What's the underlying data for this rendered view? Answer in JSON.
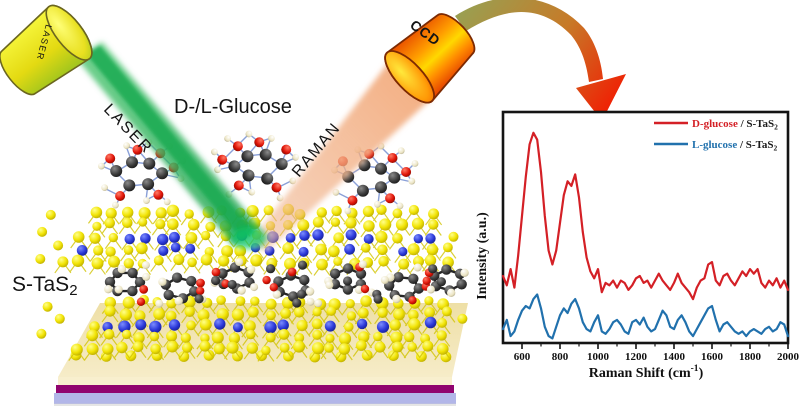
{
  "scene": {
    "labels": {
      "laser_device": "LASER",
      "laser_beam": "LASER",
      "raman_beam": "RAMAN",
      "ccd_device": "CCD",
      "analyte": "D-/L-Glucose",
      "substrate_main": "S-TaS",
      "substrate_sub": "2"
    },
    "colors": {
      "laser_body": "#f0e818",
      "laser_beam_green": "#18a34c",
      "raman_beam_salmon": "#f2a878",
      "ccd_body_orange": "#ff7a00",
      "arrow_start_olive": "#96a254",
      "arrow_end_red": "#ee2405",
      "sulfur_atom_yellow": "#ecd90a",
      "tantalum_atom_blue": "#2531cf",
      "carbon_atom_dark": "#3c3c3c",
      "oxygen_atom_red": "#e01408",
      "hydrogen_atom_cream": "#ece5c4",
      "substrate_top_cream": "#f1e2b2",
      "substrate_stripe_magenta": "#90046f",
      "substrate_base_lavender": "#b2b6e8"
    }
  },
  "chart_data": {
    "type": "line",
    "title": "",
    "xlabel_main": "Raman Shift (cm",
    "xlabel_sup": "-1",
    "xlabel_close": ")",
    "ylabel": "Intensity (a.u.)",
    "x_range": [
      500,
      2000
    ],
    "x_major_ticks": [
      600,
      800,
      1000,
      1200,
      1400,
      1600,
      1800,
      2000
    ],
    "x_minor_ticks": [
      700,
      900,
      1100,
      1300,
      1500,
      1700,
      1900
    ],
    "y_axis": "unlabeled arbitrary units, no tick labels",
    "grid": false,
    "legend_position": "top-right inside frame",
    "legend": [
      {
        "label_main": "D-glucose",
        "label_suffix": " / S-TaS",
        "label_sub": "2",
        "color": "#d42026"
      },
      {
        "label_main": "L-glucose",
        "label_suffix": " / S-TaS",
        "label_sub": "2",
        "color": "#2171ad"
      }
    ],
    "series": [
      {
        "name": "D-glucose / S-TaS2",
        "color": "#d42026",
        "x_start": 500,
        "x_step": 20,
        "y_relative": [
          0.29,
          0.25,
          0.32,
          0.24,
          0.38,
          0.55,
          0.72,
          0.86,
          0.91,
          0.88,
          0.74,
          0.55,
          0.4,
          0.34,
          0.4,
          0.52,
          0.64,
          0.7,
          0.68,
          0.73,
          0.63,
          0.48,
          0.37,
          0.31,
          0.28,
          0.32,
          0.22,
          0.26,
          0.25,
          0.27,
          0.24,
          0.27,
          0.26,
          0.23,
          0.25,
          0.28,
          0.29,
          0.26,
          0.27,
          0.24,
          0.27,
          0.3,
          0.27,
          0.25,
          0.23,
          0.26,
          0.3,
          0.26,
          0.24,
          0.22,
          0.19,
          0.24,
          0.27,
          0.28,
          0.34,
          0.35,
          0.27,
          0.25,
          0.29,
          0.3,
          0.27,
          0.25,
          0.28,
          0.31,
          0.29,
          0.32,
          0.3,
          0.32,
          0.26,
          0.24,
          0.27,
          0.25,
          0.28,
          0.24,
          0.27,
          0.23
        ]
      },
      {
        "name": "L-glucose / S-TaS2",
        "color": "#2171ad",
        "x_start": 500,
        "x_step": 20,
        "y_relative": [
          0.06,
          0.1,
          0.03,
          0.05,
          0.1,
          0.14,
          0.16,
          0.15,
          0.19,
          0.21,
          0.15,
          0.07,
          0.03,
          0.02,
          0.07,
          0.12,
          0.15,
          0.13,
          0.17,
          0.19,
          0.15,
          0.09,
          0.06,
          0.05,
          0.09,
          0.12,
          0.05,
          0.04,
          0.06,
          0.09,
          0.1,
          0.08,
          0.05,
          0.04,
          0.09,
          0.1,
          0.08,
          0.11,
          0.07,
          0.05,
          0.06,
          0.1,
          0.14,
          0.12,
          0.07,
          0.06,
          0.1,
          0.12,
          0.09,
          0.05,
          0.03,
          0.06,
          0.09,
          0.12,
          0.15,
          0.16,
          0.1,
          0.05,
          0.08,
          0.09,
          0.07,
          0.05,
          0.04,
          0.05,
          0.03,
          0.05,
          0.06,
          0.05,
          0.04,
          0.06,
          0.07,
          0.05,
          0.06,
          0.09,
          0.08,
          0.03
        ]
      }
    ]
  }
}
